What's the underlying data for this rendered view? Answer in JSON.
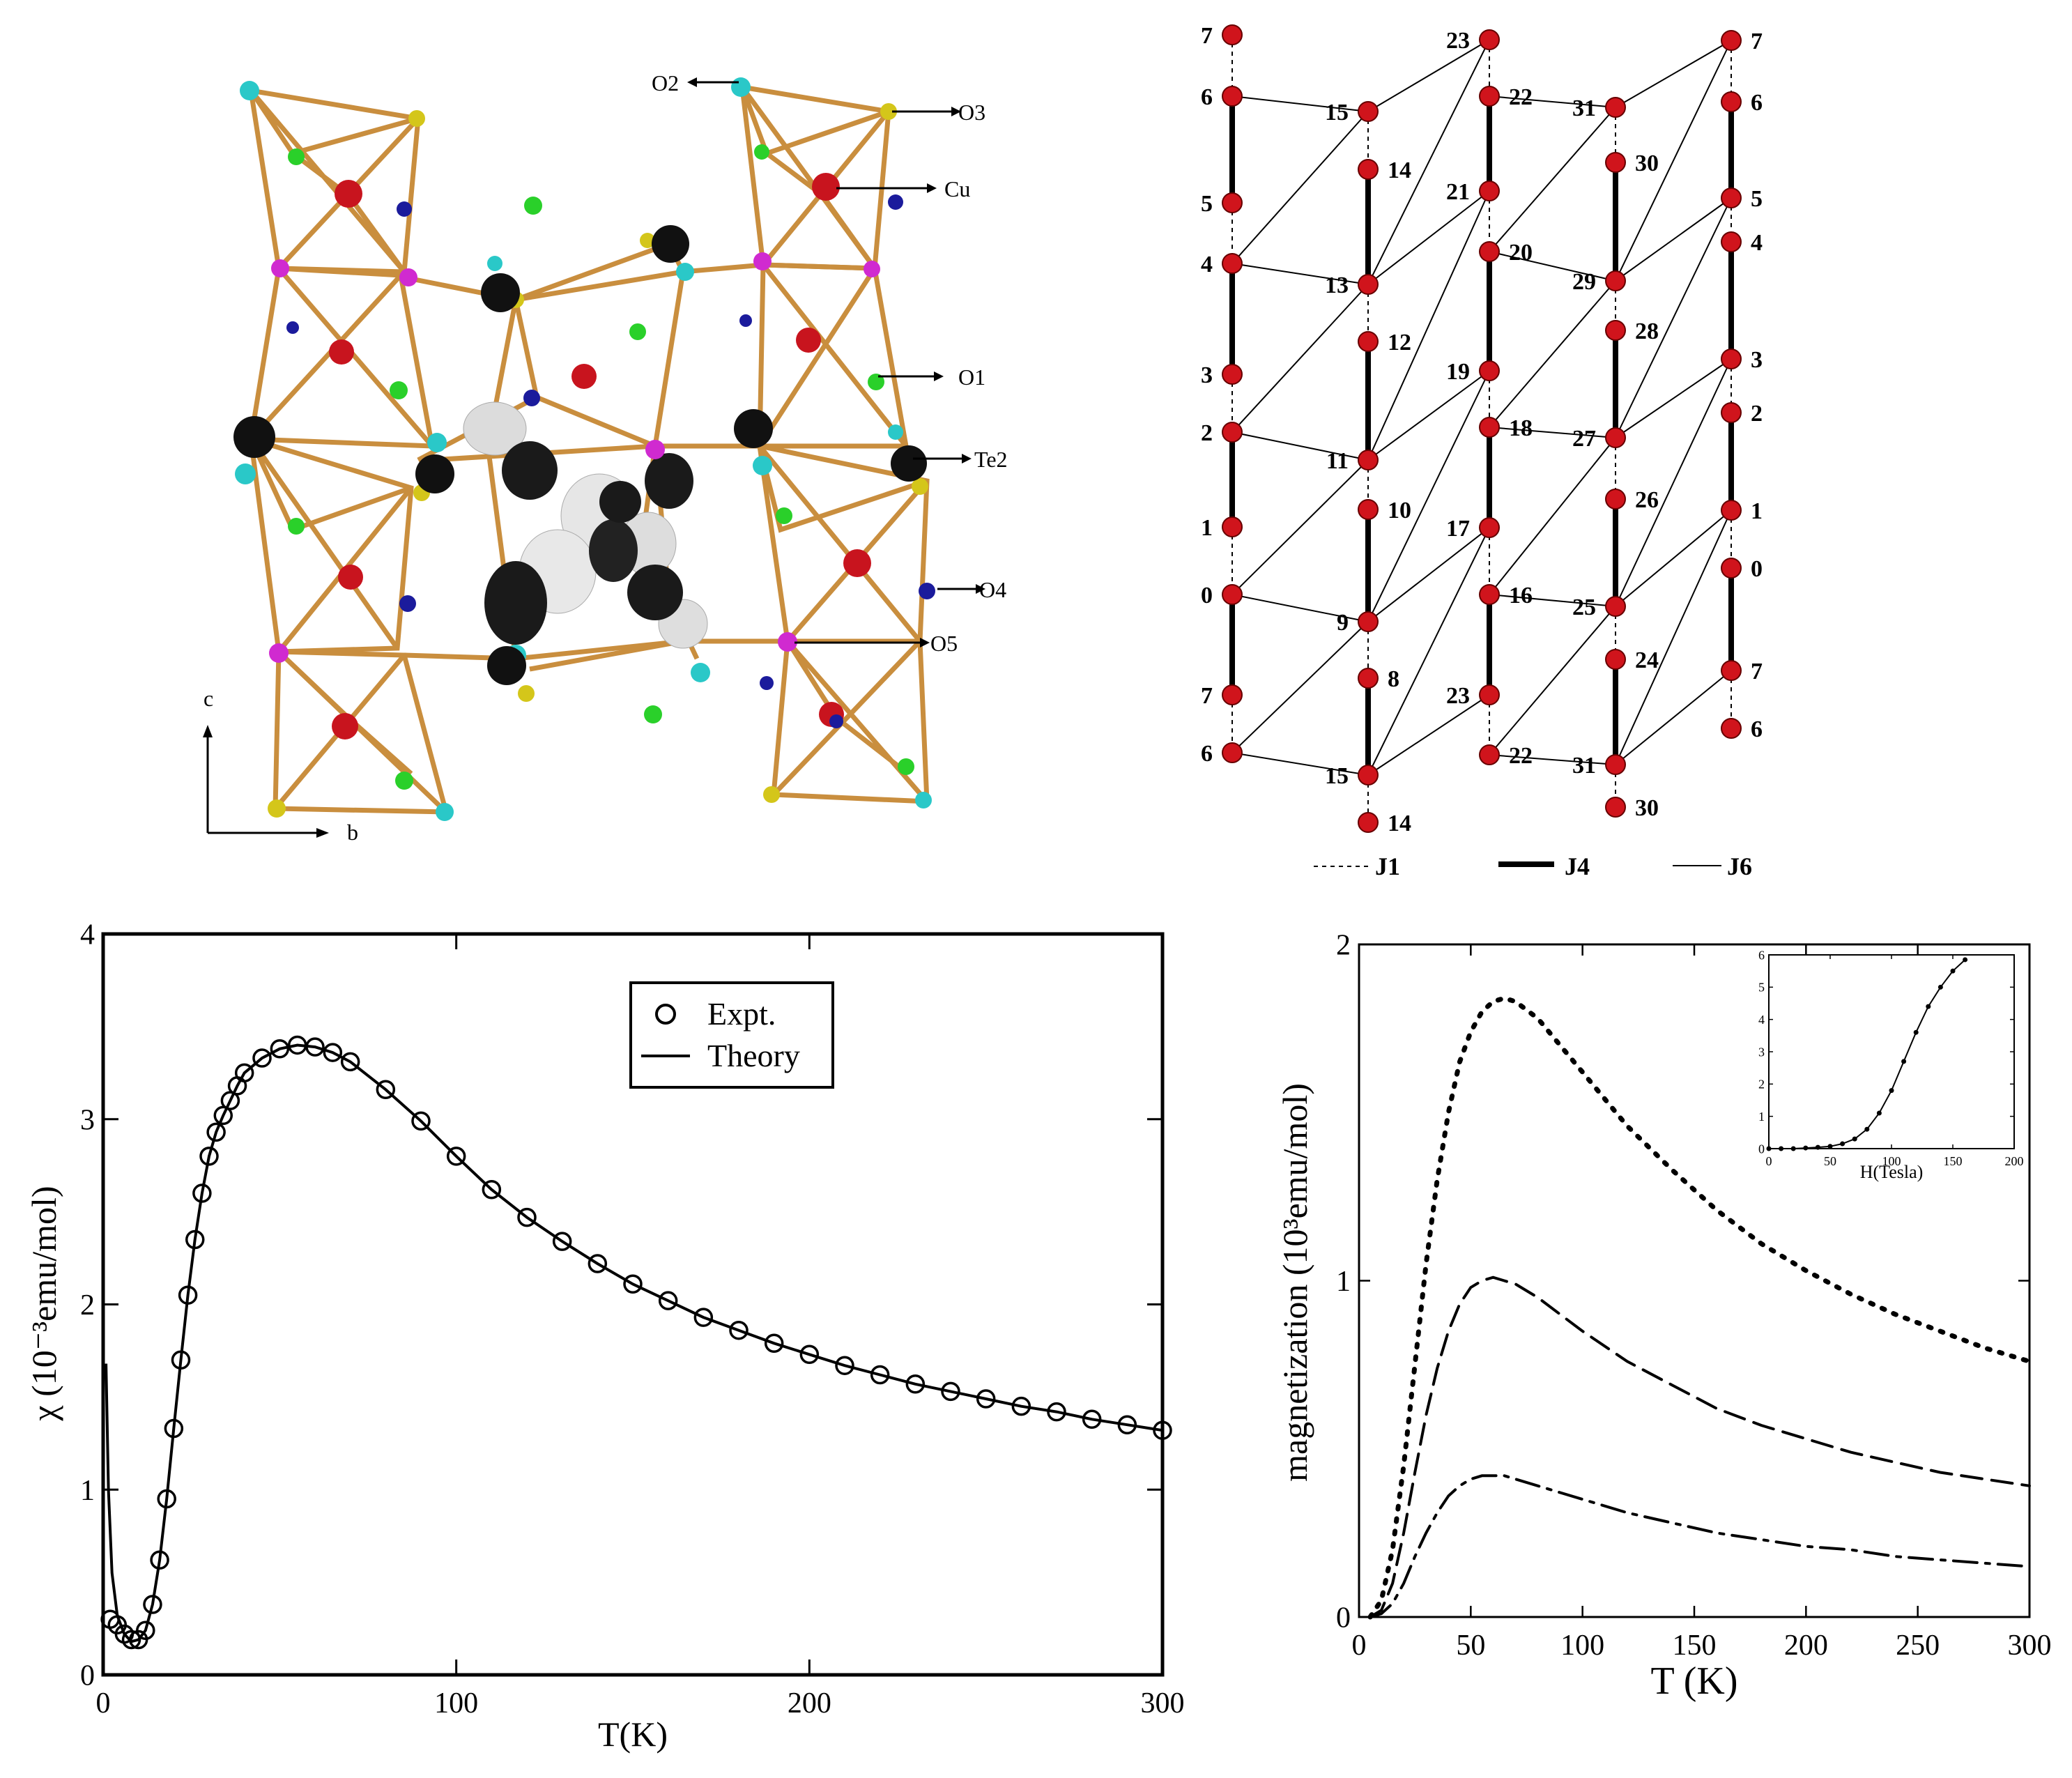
{
  "crystal": {
    "labels": [
      "O2",
      "O3",
      "Cu",
      "O1",
      "Te2",
      "O4",
      "O5"
    ],
    "axis_c": "c",
    "axis_b": "b"
  },
  "lattice": {
    "columns": [
      {
        "name": "col0",
        "nodes": [
          "7",
          "6",
          "5",
          "4",
          "3",
          "2",
          "1",
          "0",
          "7",
          "6"
        ]
      },
      {
        "name": "col1",
        "nodes": [
          "15",
          "14",
          "13",
          "12",
          "11",
          "10",
          "9",
          "8",
          "15",
          "14"
        ]
      },
      {
        "name": "col2",
        "nodes": [
          "23",
          "22",
          "21",
          "20",
          "19",
          "18",
          "17",
          "16",
          "23",
          "22"
        ]
      },
      {
        "name": "col3",
        "nodes": [
          "31",
          "30",
          "29",
          "28",
          "27",
          "26",
          "25",
          "24",
          "31",
          "30"
        ]
      },
      {
        "name": "col4",
        "nodes": [
          "7",
          "6",
          "5",
          "4",
          "3",
          "2",
          "1",
          "0",
          "7",
          "6"
        ]
      }
    ],
    "legend": [
      "J1",
      "J4",
      "J6"
    ]
  },
  "chart_data": [
    {
      "type": "scatter",
      "title": "",
      "xlabel": "T(K)",
      "ylabel": "χ (10⁻³emu/mol)",
      "xlim": [
        0,
        300
      ],
      "ylim": [
        0,
        4
      ],
      "xticks": [
        0,
        100,
        200,
        300
      ],
      "yticks": [
        0,
        1,
        2,
        3,
        4
      ],
      "legend": {
        "position": "top-right",
        "entries": [
          "Expt.",
          "Theory"
        ]
      },
      "series": [
        {
          "name": "Expt.",
          "style": "open-circle",
          "x": [
            2,
            4,
            6,
            8,
            10,
            12,
            14,
            16,
            18,
            20,
            22,
            24,
            26,
            28,
            30,
            32,
            34,
            36,
            38,
            40,
            45,
            50,
            55,
            60,
            65,
            70,
            80,
            90,
            100,
            110,
            120,
            130,
            140,
            150,
            160,
            170,
            180,
            190,
            200,
            210,
            220,
            230,
            240,
            250,
            260,
            270,
            280,
            290,
            300
          ],
          "y": [
            0.3,
            0.27,
            0.22,
            0.19,
            0.19,
            0.24,
            0.38,
            0.62,
            0.95,
            1.33,
            1.7,
            2.05,
            2.35,
            2.6,
            2.8,
            2.93,
            3.02,
            3.1,
            3.18,
            3.25,
            3.33,
            3.38,
            3.4,
            3.39,
            3.36,
            3.31,
            3.16,
            2.99,
            2.8,
            2.62,
            2.47,
            2.34,
            2.22,
            2.11,
            2.02,
            1.93,
            1.86,
            1.79,
            1.73,
            1.67,
            1.62,
            1.57,
            1.53,
            1.49,
            1.45,
            1.42,
            1.38,
            1.35,
            1.32
          ]
        },
        {
          "name": "Theory",
          "style": "solid",
          "x": [
            0.8,
            1.5,
            2.5,
            4,
            6,
            8,
            10,
            12,
            14,
            16,
            18,
            20,
            22,
            24,
            26,
            28,
            30,
            32,
            34,
            36,
            38,
            40,
            45,
            50,
            55,
            60,
            65,
            70,
            80,
            90,
            100,
            110,
            120,
            130,
            140,
            150,
            160,
            170,
            180,
            190,
            200,
            210,
            220,
            230,
            240,
            250,
            260,
            270,
            280,
            290,
            300
          ],
          "y": [
            1.68,
            1.0,
            0.55,
            0.32,
            0.22,
            0.18,
            0.19,
            0.24,
            0.38,
            0.62,
            0.95,
            1.33,
            1.7,
            2.05,
            2.35,
            2.6,
            2.8,
            2.93,
            3.02,
            3.1,
            3.18,
            3.25,
            3.33,
            3.38,
            3.4,
            3.39,
            3.36,
            3.31,
            3.16,
            2.99,
            2.8,
            2.62,
            2.47,
            2.34,
            2.22,
            2.11,
            2.02,
            1.93,
            1.86,
            1.79,
            1.73,
            1.67,
            1.62,
            1.57,
            1.53,
            1.49,
            1.45,
            1.42,
            1.38,
            1.35,
            1.32
          ]
        }
      ]
    },
    {
      "type": "line",
      "title": "",
      "xlabel": "T (K)",
      "ylabel": "magnetization (10³emu/mol)",
      "xlim": [
        0,
        300
      ],
      "ylim": [
        0,
        2
      ],
      "xticks": [
        0,
        50,
        100,
        150,
        200,
        250,
        300
      ],
      "yticks": [
        0,
        1,
        2
      ],
      "series": [
        {
          "style": "dotted",
          "x": [
            5,
            10,
            15,
            20,
            25,
            30,
            35,
            40,
            45,
            50,
            55,
            60,
            65,
            70,
            80,
            90,
            100,
            120,
            140,
            160,
            180,
            200,
            220,
            240,
            260,
            280,
            300
          ],
          "y": [
            0.0,
            0.05,
            0.2,
            0.45,
            0.75,
            1.05,
            1.3,
            1.5,
            1.65,
            1.74,
            1.8,
            1.83,
            1.84,
            1.83,
            1.78,
            1.7,
            1.62,
            1.46,
            1.33,
            1.21,
            1.11,
            1.03,
            0.96,
            0.9,
            0.85,
            0.8,
            0.76
          ]
        },
        {
          "style": "dashed",
          "x": [
            5,
            10,
            15,
            20,
            25,
            30,
            35,
            40,
            45,
            50,
            55,
            60,
            65,
            70,
            80,
            90,
            100,
            120,
            140,
            160,
            180,
            200,
            220,
            240,
            260,
            280,
            300
          ],
          "y": [
            0.0,
            0.02,
            0.1,
            0.25,
            0.43,
            0.6,
            0.74,
            0.85,
            0.93,
            0.98,
            1.0,
            1.01,
            1.0,
            0.99,
            0.95,
            0.9,
            0.85,
            0.76,
            0.69,
            0.62,
            0.57,
            0.53,
            0.49,
            0.46,
            0.43,
            0.41,
            0.39
          ]
        },
        {
          "style": "dashdot",
          "x": [
            5,
            10,
            15,
            20,
            25,
            30,
            35,
            40,
            45,
            50,
            55,
            60,
            65,
            70,
            80,
            90,
            100,
            120,
            140,
            160,
            180,
            200,
            220,
            240,
            260,
            280,
            300
          ],
          "y": [
            0.0,
            0.01,
            0.04,
            0.1,
            0.18,
            0.25,
            0.31,
            0.36,
            0.39,
            0.41,
            0.42,
            0.42,
            0.42,
            0.41,
            0.39,
            0.37,
            0.35,
            0.31,
            0.28,
            0.25,
            0.23,
            0.21,
            0.2,
            0.18,
            0.17,
            0.16,
            0.15
          ]
        }
      ]
    },
    {
      "type": "line",
      "title": "",
      "xlabel": "H(Tesla)",
      "ylabel": "",
      "xlim": [
        0,
        200
      ],
      "ylim": [
        0,
        6
      ],
      "xticks": [
        0,
        50,
        100,
        150,
        200
      ],
      "yticks": [
        0,
        1,
        2,
        3,
        4,
        5,
        6
      ],
      "series": [
        {
          "style": "solid-with-markers",
          "x": [
            0,
            10,
            20,
            30,
            40,
            50,
            60,
            70,
            80,
            90,
            100,
            110,
            120,
            130,
            140,
            150,
            160
          ],
          "y": [
            0.0,
            0.0,
            0.0,
            0.02,
            0.04,
            0.07,
            0.15,
            0.3,
            0.6,
            1.1,
            1.8,
            2.7,
            3.6,
            4.4,
            5.0,
            5.5,
            5.85
          ]
        }
      ]
    }
  ]
}
